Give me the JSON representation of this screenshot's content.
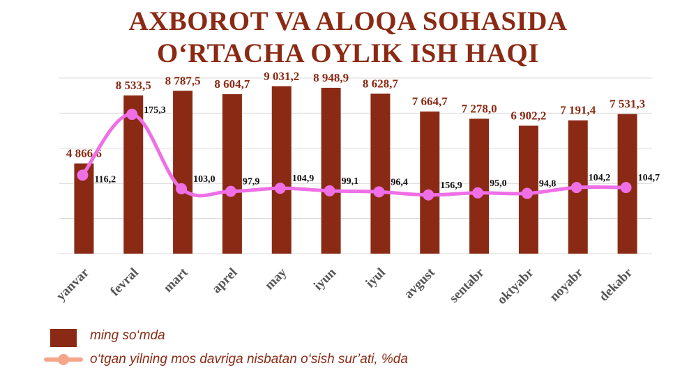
{
  "title_line1": "AXBOROT VA ALOQA SOHASIDA",
  "title_line2": "O‘RTACHA OYLIK ISH HAQI",
  "legend": {
    "bars": "ming so‘mda",
    "line": "o‘tgan yilning mos davriga nisbatan o‘sish sur’ati, %da"
  },
  "colors": {
    "bar": "#8b2a14",
    "line": "#ee6fe6",
    "legend_line": "#f4a58a",
    "grid": "#d9d9d9"
  },
  "chart_data": {
    "type": "bar",
    "categories": [
      "yanvar",
      "fevral",
      "mart",
      "aprel",
      "may",
      "iyun",
      "iyul",
      "avgust",
      "sentabr",
      "oktyabr",
      "noyabr",
      "dekabr"
    ],
    "series": [
      {
        "name": "ming so‘mda",
        "type": "bar",
        "values": [
          4866.6,
          8533.5,
          8787.5,
          8604.7,
          9031.2,
          8948.9,
          8628.7,
          7664.7,
          7278.0,
          6902.2,
          7191.4,
          7531.3
        ],
        "labels": [
          "4 866,6",
          "8 533,5",
          "8 787,5",
          "8 604,7",
          "9 031,2",
          "8 948,9",
          "8 628,7",
          "7 664,7",
          "7 278,0",
          "6 902,2",
          "7 191,4",
          "7 531,3"
        ]
      },
      {
        "name": "o‘tgan yilning mos davriga nisbatan o‘sish sur’ati, %da",
        "type": "line",
        "values": [
          116.2,
          175.3,
          103.0,
          97.9,
          104.9,
          99.1,
          96.4,
          156.9,
          95.0,
          94.8,
          104.2,
          104.7
        ],
        "labels": [
          "116,2",
          "175,3",
          "103,0",
          "97,9",
          "104,9",
          "99,1",
          "96,4",
          "156,9",
          "95,0",
          "94,8",
          "104,2",
          "104,7"
        ]
      }
    ],
    "line_marker_level": [
      116.2,
      175.3,
      103.0,
      100.5,
      103.5,
      101.0,
      100.0,
      97.0,
      99.0,
      98.5,
      104.2,
      104.2
    ],
    "bar_ylim": [
      0,
      10000
    ],
    "line_ylim": [
      40,
      220
    ],
    "grid": true,
    "legend_position": "bottom-left"
  }
}
